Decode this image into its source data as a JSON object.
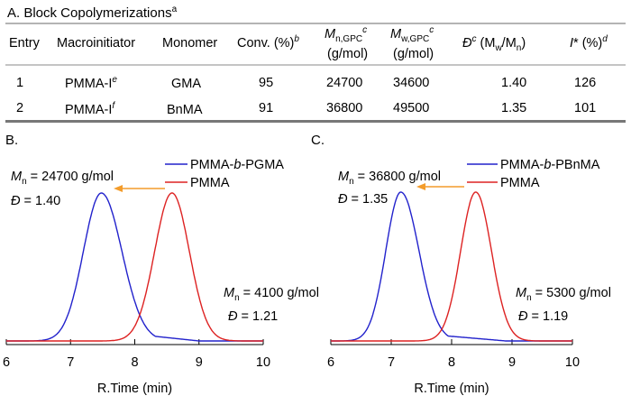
{
  "table": {
    "title": "A. Block Copolymerizations",
    "title_footnote": "a",
    "headers": {
      "entry": "Entry",
      "macroinitiator": "Macroinitiator",
      "monomer": "Monomer",
      "conv_main": "Conv. (%)",
      "conv_sup": "b",
      "mn_main": "M",
      "mn_sub": "n,GPC",
      "mn_sup": "c",
      "mn_unit": "(g/mol)",
      "mw_main": "M",
      "mw_sub": "w,GPC",
      "mw_sup": "c",
      "mw_unit": "(g/mol)",
      "d_main": "Đ",
      "d_sup": "c",
      "d_paren_open": "(M",
      "d_sub_w": "w",
      "d_slash": "/M",
      "d_sub_n": "n",
      "d_paren_close": ")",
      "istar_main": "I* (%)",
      "istar_sup": "d"
    },
    "rows": [
      {
        "entry": "1",
        "macro": "PMMA-I",
        "macro_sup": "e",
        "monomer": "GMA",
        "conv": "95",
        "mn": "24700",
        "mw": "34600",
        "d": "1.40",
        "istar": "126"
      },
      {
        "entry": "2",
        "macro": "PMMA-I",
        "macro_sup": "f",
        "monomer": "BnMA",
        "conv": "91",
        "mn": "36800",
        "mw": "49500",
        "d": "1.35",
        "istar": "101"
      }
    ]
  },
  "chart_data": [
    {
      "type": "line",
      "panel_label": "B.",
      "xlabel": "R.Time (min)",
      "xlim": [
        6,
        10
      ],
      "xticks": [
        "6",
        "7",
        "8",
        "9",
        "10"
      ],
      "series": [
        {
          "name": "PMMA-b-PGMA",
          "name_parts": [
            "PMMA-",
            "b",
            "-PGMA"
          ],
          "color": "#2222cc",
          "peak_x": 7.48,
          "width_left": 0.28,
          "width_right": 0.32,
          "tail_level": 0.05,
          "tail_end": 9.0
        },
        {
          "name": "PMMA",
          "name_parts": [
            "PMMA",
            "",
            ""
          ],
          "color": "#dd2222",
          "peak_x": 8.58,
          "width_left": 0.27,
          "width_right": 0.27,
          "tail_level": 0.0,
          "tail_end": 9.2
        }
      ],
      "annotations": {
        "block_mn": "M",
        "block_mn_sub": "n",
        "block_mn_text": " = 24700 g/mol",
        "block_d": "Đ",
        "block_d_text": " = 1.40",
        "homo_mn": "M",
        "homo_mn_sub": "n",
        "homo_mn_text": " = 4100 g/mol",
        "homo_d": "Đ",
        "homo_d_text": " = 1.21"
      },
      "arrow_color": "#f39c2b"
    },
    {
      "type": "line",
      "panel_label": "C.",
      "xlabel": "R.Time (min)",
      "xlim": [
        6,
        10
      ],
      "xticks": [
        "6",
        "7",
        "8",
        "9",
        "10"
      ],
      "series": [
        {
          "name": "PMMA-b-PBnMA",
          "name_parts": [
            "PMMA-",
            "b",
            "-PBnMA"
          ],
          "color": "#2222cc",
          "peak_x": 7.16,
          "width_left": 0.25,
          "width_right": 0.3,
          "tail_level": 0.04,
          "tail_end": 8.9
        },
        {
          "name": "PMMA",
          "name_parts": [
            "PMMA",
            "",
            ""
          ],
          "color": "#dd2222",
          "peak_x": 8.4,
          "width_left": 0.25,
          "width_right": 0.26,
          "tail_level": 0.0,
          "tail_end": 9.1
        }
      ],
      "annotations": {
        "block_mn": "M",
        "block_mn_sub": "n",
        "block_mn_text": " = 36800 g/mol",
        "block_d": "Đ",
        "block_d_text": " = 1.35",
        "homo_mn": "M",
        "homo_mn_sub": "n",
        "homo_mn_text": " = 5300 g/mol",
        "homo_d": "Đ",
        "homo_d_text": " = 1.19"
      },
      "arrow_color": "#f39c2b"
    }
  ]
}
